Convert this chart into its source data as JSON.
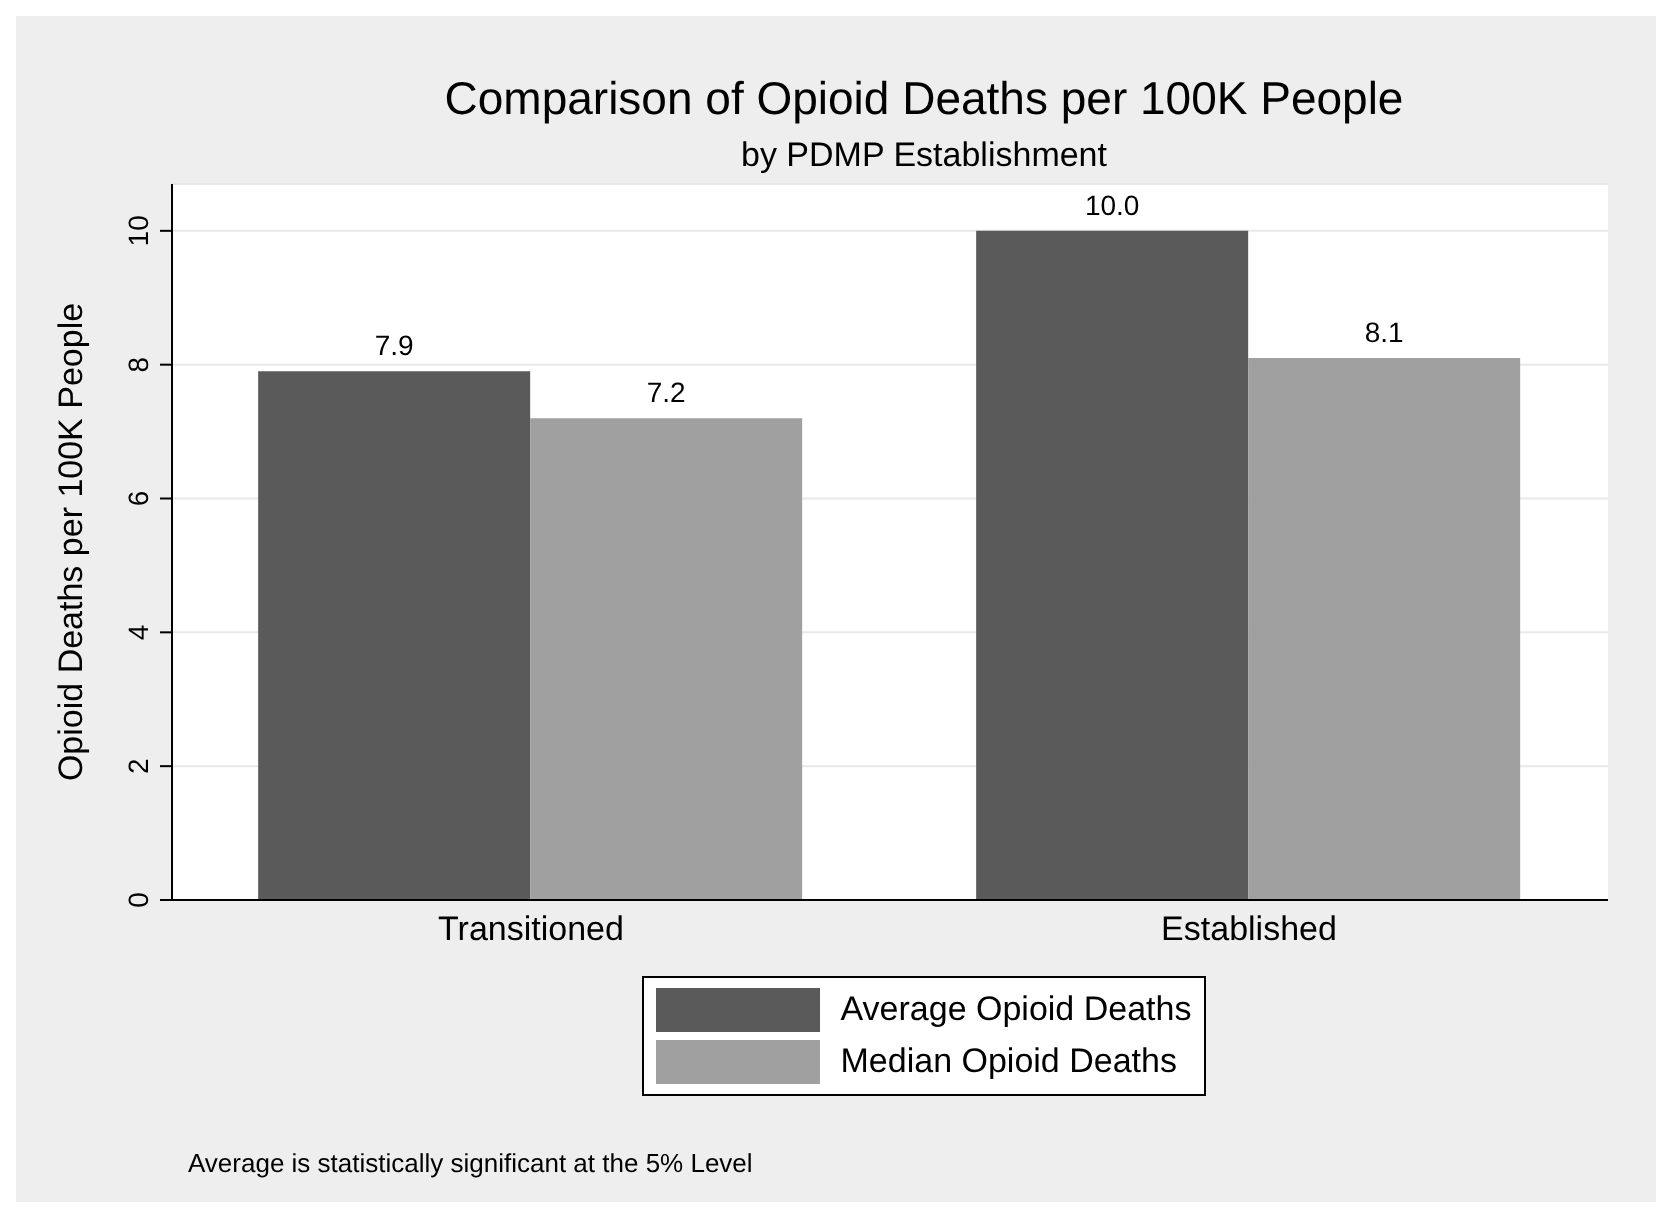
{
  "chart_data": {
    "type": "bar",
    "title": "Comparison of Opioid Deaths per 100K People",
    "subtitle": "by PDMP Establishment",
    "ylabel": "Opioid Deaths per 100K People",
    "categories": [
      "Transitioned",
      "Established"
    ],
    "series": [
      {
        "name": "Average Opioid Deaths",
        "color": "#5a5a5a",
        "values": [
          7.9,
          10.0
        ],
        "value_labels": [
          "7.9",
          "10.0"
        ]
      },
      {
        "name": "Median Opioid Deaths",
        "color": "#a0a0a0",
        "values": [
          7.2,
          8.1
        ],
        "value_labels": [
          "7.2",
          "8.1"
        ]
      }
    ],
    "ylim": [
      0,
      10.7
    ],
    "yticks": [
      0,
      2,
      4,
      6,
      8,
      10
    ],
    "grid": "y",
    "legend": "bottom",
    "annotations": [
      "Average is statistically significant at the 5% Level"
    ]
  }
}
